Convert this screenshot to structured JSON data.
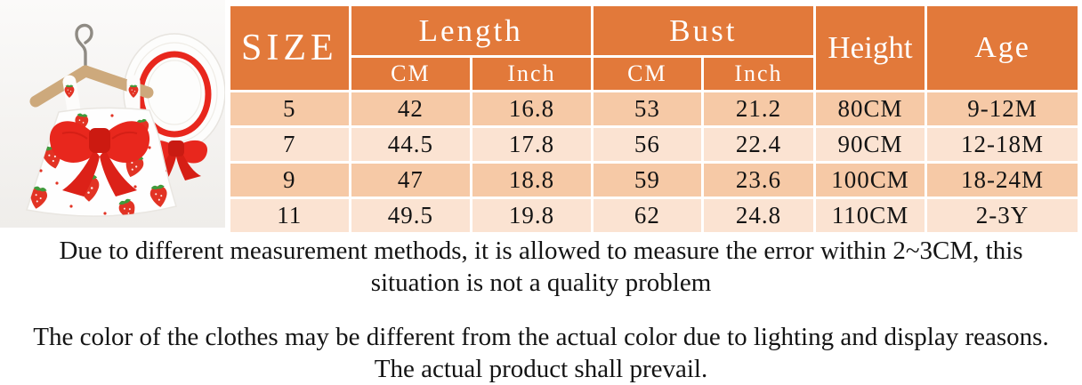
{
  "table": {
    "header": {
      "size": "SIZE",
      "length": "Length",
      "bust": "Bust",
      "height": "Height",
      "age": "Age",
      "cm": "CM",
      "inch": "Inch"
    },
    "rows": [
      {
        "size": "5",
        "length_cm": "42",
        "length_inch": "16.8",
        "bust_cm": "53",
        "bust_inch": "21.2",
        "height": "80CM",
        "age": "9-12M"
      },
      {
        "size": "7",
        "length_cm": "44.5",
        "length_inch": "17.8",
        "bust_cm": "56",
        "bust_inch": "22.4",
        "height": "90CM",
        "age": "12-18M"
      },
      {
        "size": "9",
        "length_cm": "47",
        "length_inch": "18.8",
        "bust_cm": "59",
        "bust_inch": "23.6",
        "height": "100CM",
        "age": "18-24M"
      },
      {
        "size": "11",
        "length_cm": "49.5",
        "length_inch": "19.8",
        "bust_cm": "62",
        "bust_inch": "24.8",
        "height": "110CM",
        "age": "2-3Y"
      }
    ]
  },
  "notes": {
    "measurement": "Due to different measurement methods, it is allowed to measure the error within 2~3CM, this situation is not a quality problem",
    "color": "The color of the clothes may be different from the actual color due to lighting and display reasons. The actual product shall prevail."
  },
  "colors": {
    "header_bg": "#E2793A",
    "row_odd_bg": "#F6C9A6",
    "row_even_bg": "#FBE3D2",
    "accent_red": "#E8271D",
    "text": "#141414"
  }
}
